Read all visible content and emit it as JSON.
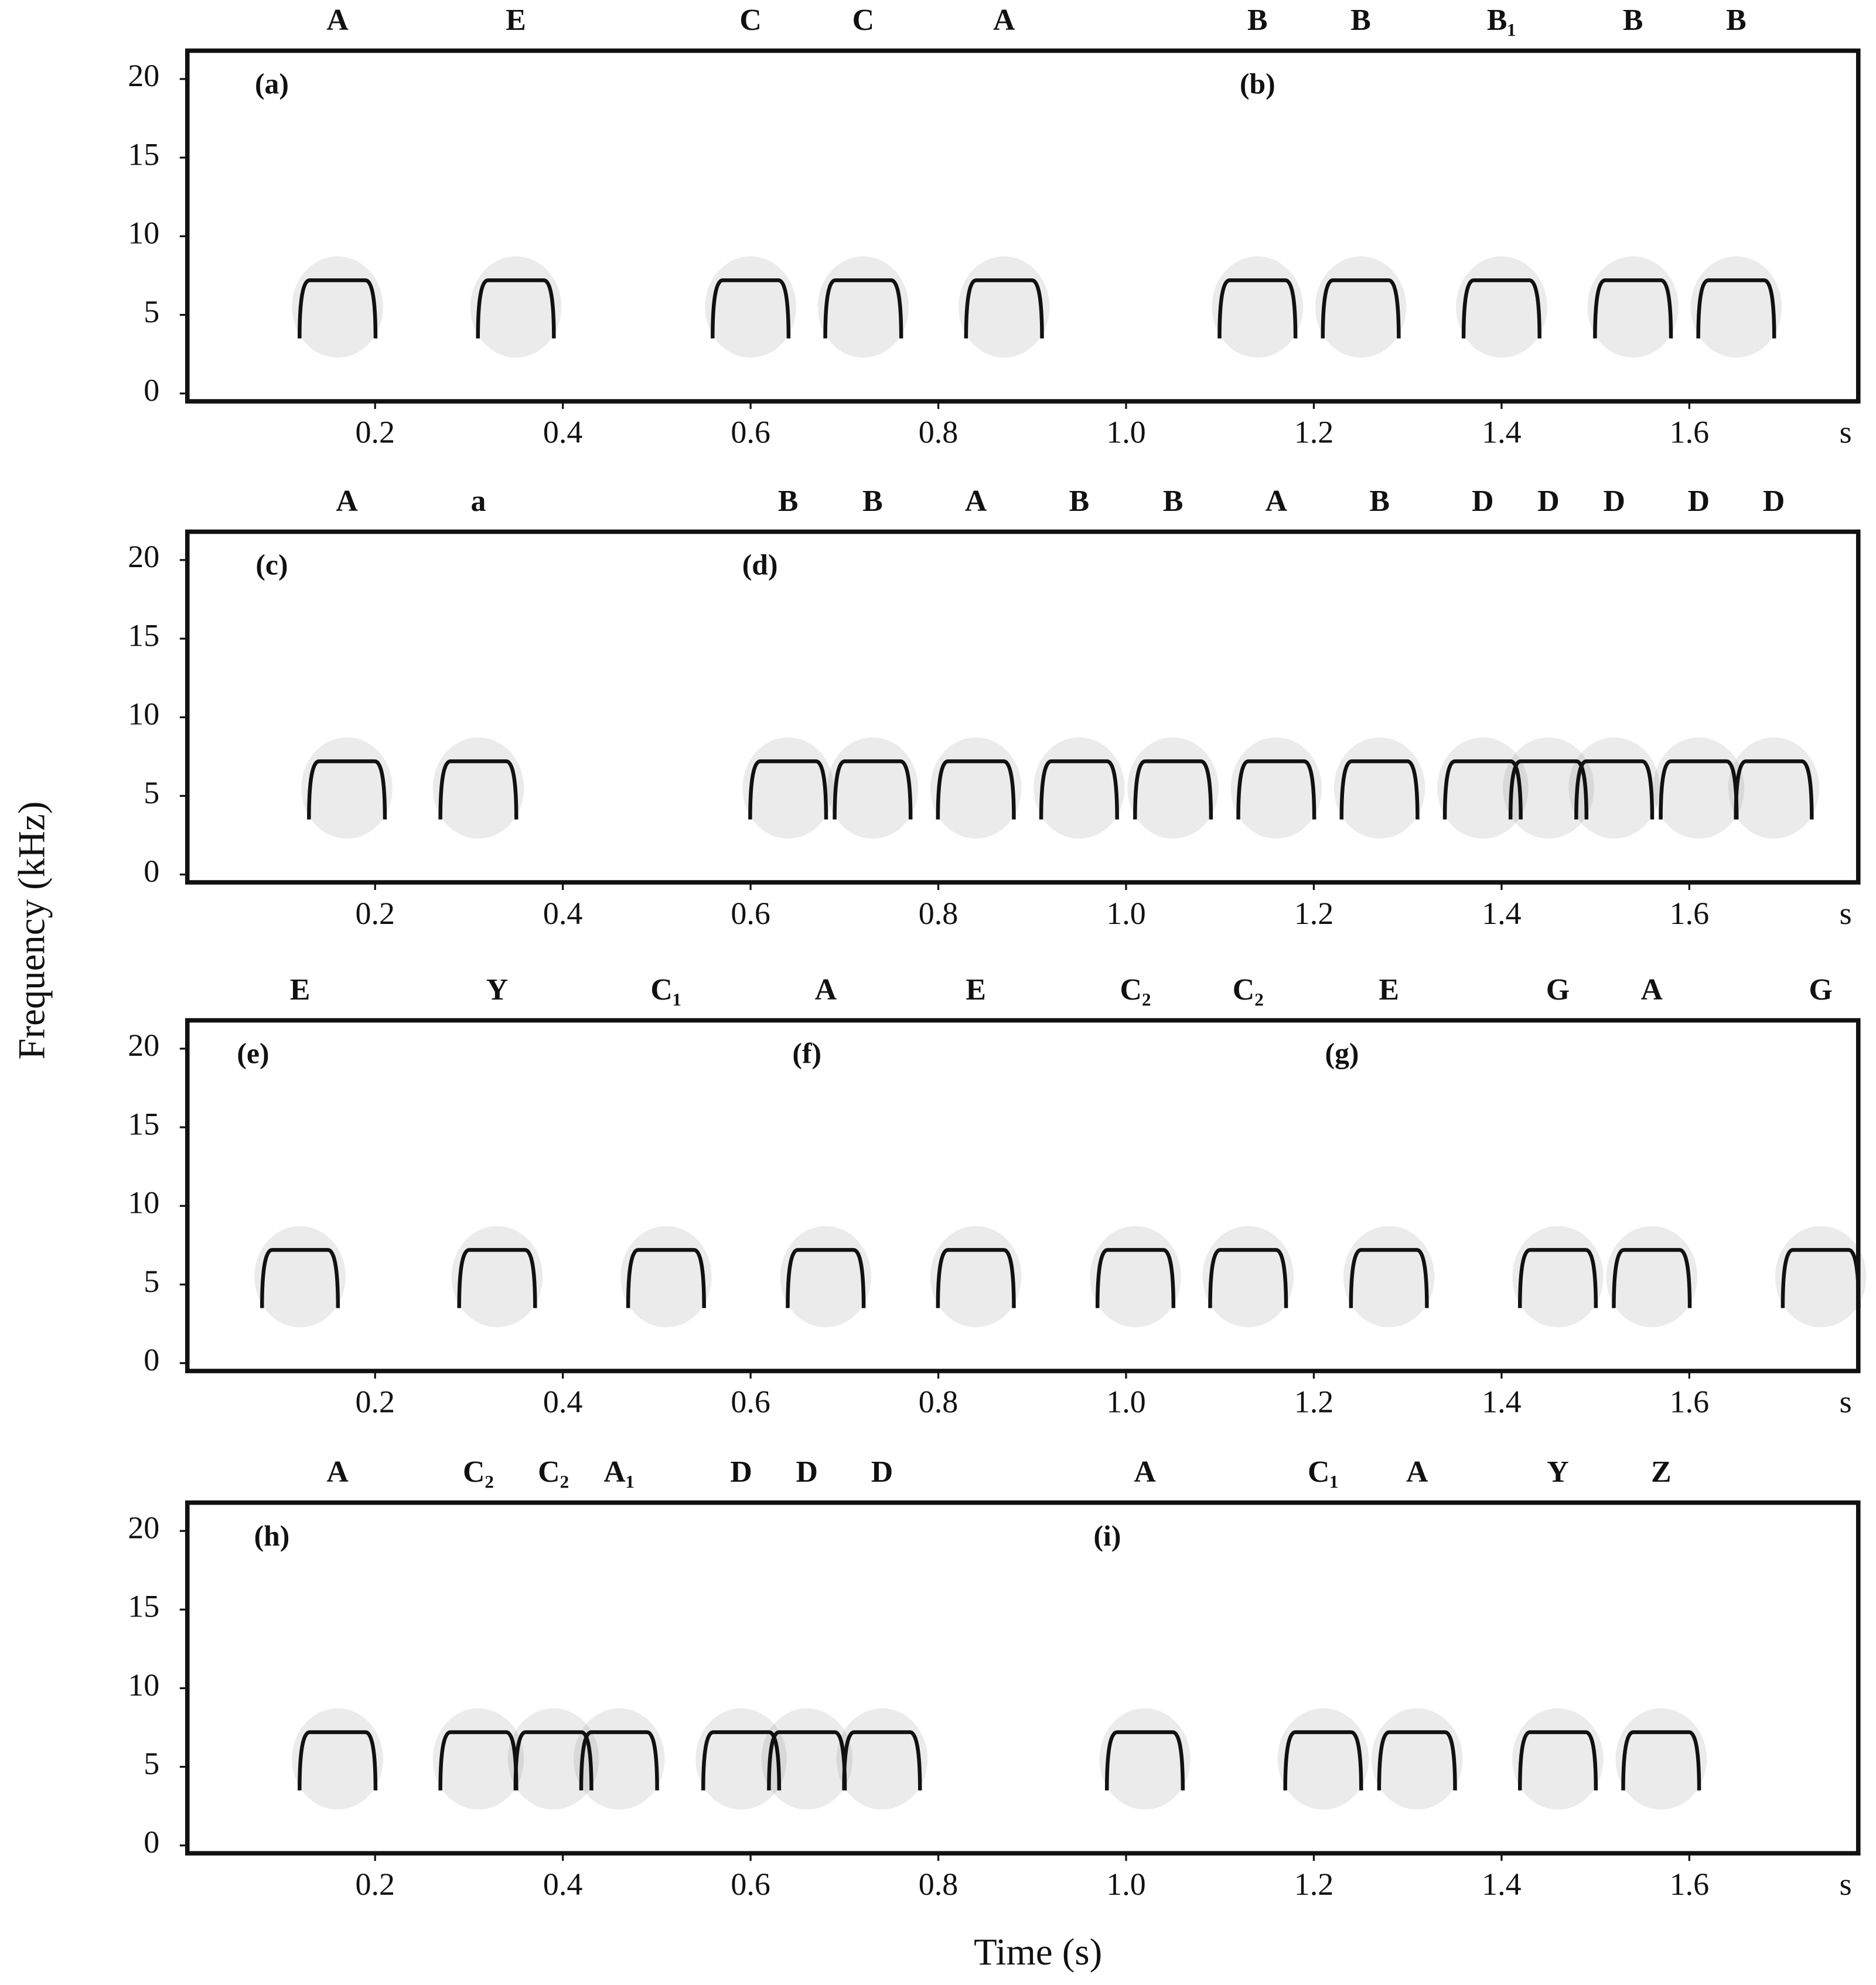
{
  "y_label": "Frequency (kHz)",
  "x_label": "Time (s)",
  "chart_data": [
    {
      "type": "spectrogram",
      "panel_labels": [
        {
          "text": "(a)",
          "x": 0.09
        },
        {
          "text": "(b)",
          "x": 1.14
        }
      ],
      "annotations": [
        {
          "text": "A",
          "x": 0.16
        },
        {
          "text": "E",
          "x": 0.35
        },
        {
          "text": "C",
          "x": 0.6
        },
        {
          "text": "C",
          "x": 0.72
        },
        {
          "text": "A",
          "x": 0.87
        },
        {
          "text": "B",
          "x": 1.14
        },
        {
          "text": "B",
          "x": 1.25
        },
        {
          "text": "B₁",
          "x": 1.4
        },
        {
          "text": "B",
          "x": 1.54
        },
        {
          "text": "B",
          "x": 1.65
        }
      ],
      "xlim": [
        0,
        1.78
      ],
      "ylim": [
        -0.5,
        21.8
      ],
      "xticks": [
        0.2,
        0.4,
        0.6,
        0.8,
        {
          "value": 1,
          "label": "1.0"
        },
        1.2,
        1.4,
        1.6
      ],
      "x_unit": "s",
      "yticks": [
        0,
        5,
        10,
        15,
        20
      ]
    },
    {
      "type": "spectrogram",
      "panel_labels": [
        {
          "text": "(c)",
          "x": 0.09
        },
        {
          "text": "(d)",
          "x": 0.61
        }
      ],
      "annotations": [
        {
          "text": "A",
          "x": 0.17
        },
        {
          "text": "a",
          "x": 0.31
        },
        {
          "text": "B",
          "x": 0.64
        },
        {
          "text": "B",
          "x": 0.73
        },
        {
          "text": "A",
          "x": 0.84
        },
        {
          "text": "B",
          "x": 0.95
        },
        {
          "text": "B",
          "x": 1.05
        },
        {
          "text": "A",
          "x": 1.16
        },
        {
          "text": "B",
          "x": 1.27
        },
        {
          "text": "D",
          "x": 1.38
        },
        {
          "text": "D",
          "x": 1.45
        },
        {
          "text": "D",
          "x": 1.52
        },
        {
          "text": "D",
          "x": 1.61
        },
        {
          "text": "D",
          "x": 1.69
        }
      ],
      "xlim": [
        0,
        1.78
      ],
      "ylim": [
        -0.5,
        21.8
      ],
      "xticks": [
        0.2,
        0.4,
        0.6,
        0.8,
        {
          "value": 1,
          "label": "1.0"
        },
        1.2,
        1.4,
        1.6
      ],
      "x_unit": "s",
      "yticks": [
        0,
        5,
        10,
        15,
        20
      ]
    },
    {
      "type": "spectrogram",
      "panel_labels": [
        {
          "text": "(e)",
          "x": 0.07
        },
        {
          "text": "(f)",
          "x": 0.66
        },
        {
          "text": "(g)",
          "x": 1.23
        }
      ],
      "annotations": [
        {
          "text": "E",
          "x": 0.12
        },
        {
          "text": "Y",
          "x": 0.33
        },
        {
          "text": "C₁",
          "x": 0.51
        },
        {
          "text": "A",
          "x": 0.68
        },
        {
          "text": "E",
          "x": 0.84
        },
        {
          "text": "C₂",
          "x": 1.01
        },
        {
          "text": "C₂",
          "x": 1.13
        },
        {
          "text": "E",
          "x": 1.28
        },
        {
          "text": "G",
          "x": 1.46
        },
        {
          "text": "A",
          "x": 1.56
        },
        {
          "text": "G",
          "x": 1.74
        }
      ],
      "xlim": [
        0,
        1.78
      ],
      "ylim": [
        -0.5,
        21.8
      ],
      "xticks": [
        0.2,
        0.4,
        0.6,
        0.8,
        {
          "value": 1,
          "label": "1.0"
        },
        1.2,
        1.4,
        1.6
      ],
      "x_unit": "s",
      "yticks": [
        0,
        5,
        10,
        15,
        20
      ]
    },
    {
      "type": "spectrogram",
      "panel_labels": [
        {
          "text": "(h)",
          "x": 0.09
        },
        {
          "text": "(i)",
          "x": 0.98
        }
      ],
      "annotations": [
        {
          "text": "A",
          "x": 0.16
        },
        {
          "text": "C₂",
          "x": 0.31
        },
        {
          "text": "C₂",
          "x": 0.39
        },
        {
          "text": "A₁",
          "x": 0.46
        },
        {
          "text": "D",
          "x": 0.59
        },
        {
          "text": "D",
          "x": 0.66
        },
        {
          "text": "D",
          "x": 0.74
        },
        {
          "text": "A",
          "x": 1.02
        },
        {
          "text": "C₁",
          "x": 1.21
        },
        {
          "text": "A",
          "x": 1.31
        },
        {
          "text": "Y",
          "x": 1.46
        },
        {
          "text": "Z",
          "x": 1.57
        }
      ],
      "xlim": [
        0,
        1.78
      ],
      "ylim": [
        -0.5,
        21.8
      ],
      "xticks": [
        0.2,
        0.4,
        0.6,
        0.8,
        {
          "value": 1,
          "label": "1.0"
        },
        1.2,
        1.4,
        1.6
      ],
      "x_unit": "s",
      "yticks": [
        0,
        5,
        10,
        15,
        20
      ]
    }
  ]
}
